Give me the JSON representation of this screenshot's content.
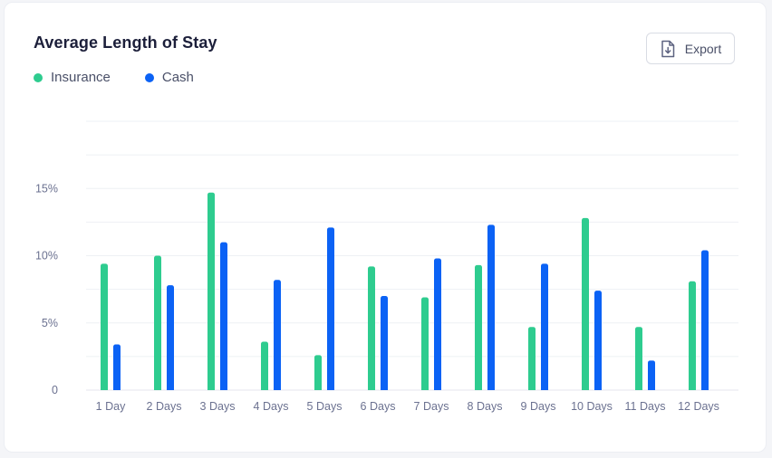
{
  "header": {
    "title": "Average Length of Stay",
    "export_label": "Export",
    "export_icon": "file-download-icon"
  },
  "legend": [
    {
      "label": "Insurance",
      "color": "#2ecc8f"
    },
    {
      "label": "Cash",
      "color": "#0b62f5"
    }
  ],
  "chart_data": {
    "type": "bar",
    "title": "Average Length of Stay",
    "xlabel": "",
    "ylabel": "",
    "ylim": [
      0,
      20
    ],
    "yticks": [
      {
        "value": 0,
        "label": "0"
      },
      {
        "value": 5,
        "label": "5%"
      },
      {
        "value": 10,
        "label": "10%"
      },
      {
        "value": 15,
        "label": "15%"
      }
    ],
    "grid": true,
    "legend_position": "top-left",
    "categories": [
      "1 Day",
      "2 Days",
      "3 Days",
      "4 Days",
      "5 Days",
      "6 Days",
      "7 Days",
      "8 Days",
      "9 Days",
      "10 Days",
      "11 Days",
      "12 Days"
    ],
    "series": [
      {
        "name": "Insurance",
        "color": "#2ecc8f",
        "values": [
          9.4,
          10.0,
          14.7,
          3.6,
          2.6,
          9.2,
          6.9,
          9.3,
          4.7,
          12.8,
          4.7,
          8.1
        ]
      },
      {
        "name": "Cash",
        "color": "#0b62f5",
        "values": [
          3.4,
          7.8,
          11.0,
          8.2,
          12.1,
          7.0,
          9.8,
          12.3,
          9.4,
          7.4,
          2.2,
          10.4
        ]
      }
    ]
  }
}
